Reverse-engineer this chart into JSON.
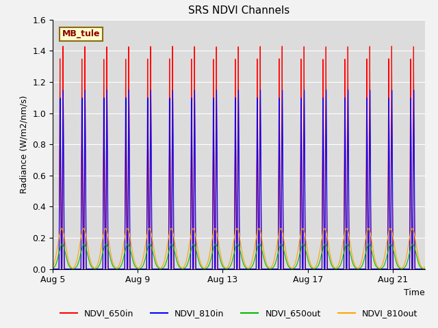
{
  "title": "SRS NDVI Channels",
  "xlabel": "Time",
  "ylabel": "Radiance (W/m2/nm/s)",
  "ylim": [
    0.0,
    1.6
  ],
  "annotation": "MB_tule",
  "colors": {
    "NDVI_650in": "#ff0000",
    "NDVI_810in": "#0000ff",
    "NDVI_650out": "#00bb00",
    "NDVI_810out": "#ffa500"
  },
  "tick_labels": [
    "Aug 5",
    "Aug 9",
    "Aug 13",
    "Aug 17",
    "Aug 21"
  ],
  "tick_positions": [
    0,
    4,
    8,
    12,
    16
  ],
  "period": 1.03,
  "num_cycles": 18
}
